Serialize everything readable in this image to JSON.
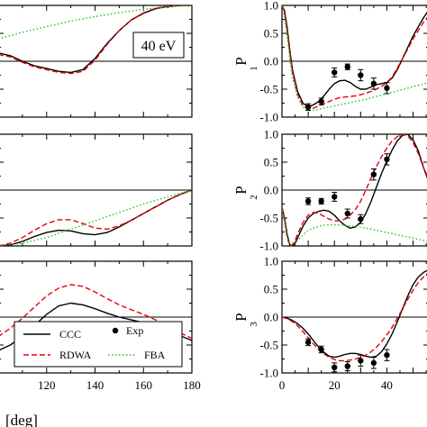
{
  "figure": {
    "energy_label": "40 eV",
    "x_axis_label": "[deg]",
    "legend": {
      "ccc": "CCC",
      "exp": "Exp",
      "rdwa": "RDWA",
      "fba": "FBA"
    }
  },
  "chart_data": [
    {
      "type": "line",
      "panel": "left-top",
      "xlim": [
        100,
        180
      ],
      "ylim": [
        -1,
        1
      ],
      "grid": false,
      "x_ticks": [],
      "series": [
        {
          "name": "CCC",
          "color": "#000000",
          "dash": "solid",
          "x": [
            100,
            105,
            110,
            115,
            120,
            125,
            130,
            135,
            140,
            145,
            150,
            155,
            160,
            165,
            170,
            175,
            180
          ],
          "y": [
            0.15,
            0.1,
            0.0,
            -0.08,
            -0.13,
            -0.18,
            -0.2,
            -0.15,
            0.05,
            0.32,
            0.55,
            0.74,
            0.86,
            0.94,
            0.98,
            1.0,
            1.0
          ]
        },
        {
          "name": "RDWA",
          "color": "#e8000b",
          "dash": "dashed",
          "x": [
            100,
            105,
            110,
            115,
            120,
            125,
            130,
            135,
            140,
            145,
            150,
            155,
            160,
            165,
            170,
            175,
            180
          ],
          "y": [
            0.12,
            0.08,
            -0.02,
            -0.1,
            -0.15,
            -0.2,
            -0.22,
            -0.18,
            0.02,
            0.3,
            0.55,
            0.74,
            0.87,
            0.95,
            0.99,
            1.0,
            1.0
          ]
        },
        {
          "name": "FBA",
          "color": "#22c022",
          "dash": "dotted",
          "x": [
            100,
            110,
            120,
            130,
            140,
            150,
            160,
            170,
            180
          ],
          "y": [
            0.4,
            0.52,
            0.62,
            0.72,
            0.8,
            0.87,
            0.93,
            0.97,
            1.0
          ]
        }
      ]
    },
    {
      "type": "line",
      "panel": "left-middle",
      "xlim": [
        100,
        180
      ],
      "ylim": [
        -1,
        1
      ],
      "grid": false,
      "x_ticks": [],
      "series": [
        {
          "name": "CCC",
          "color": "#000000",
          "dash": "solid",
          "x": [
            100,
            105,
            110,
            115,
            120,
            125,
            130,
            135,
            140,
            145,
            150,
            155,
            160,
            165,
            170,
            175,
            180
          ],
          "y": [
            -1.0,
            -0.98,
            -0.92,
            -0.83,
            -0.76,
            -0.72,
            -0.73,
            -0.78,
            -0.8,
            -0.76,
            -0.66,
            -0.54,
            -0.42,
            -0.3,
            -0.18,
            -0.08,
            0.0
          ]
        },
        {
          "name": "RDWA",
          "color": "#e8000b",
          "dash": "dashed",
          "x": [
            100,
            105,
            110,
            115,
            120,
            125,
            130,
            135,
            140,
            145,
            150,
            155,
            160,
            165,
            170,
            175,
            180
          ],
          "y": [
            -1.0,
            -0.95,
            -0.85,
            -0.72,
            -0.6,
            -0.53,
            -0.53,
            -0.6,
            -0.68,
            -0.7,
            -0.64,
            -0.54,
            -0.42,
            -0.3,
            -0.18,
            -0.08,
            0.0
          ]
        },
        {
          "name": "FBA",
          "color": "#22c022",
          "dash": "dotted",
          "x": [
            100,
            110,
            120,
            130,
            140,
            150,
            160,
            170,
            180
          ],
          "y": [
            -1.0,
            -0.95,
            -0.85,
            -0.7,
            -0.55,
            -0.4,
            -0.25,
            -0.12,
            0.0
          ]
        }
      ]
    },
    {
      "type": "line",
      "panel": "left-bottom",
      "xlim": [
        100,
        180
      ],
      "ylim": [
        -1,
        1
      ],
      "grid": false,
      "x_ticks": [
        120,
        140,
        160,
        180
      ],
      "series": [
        {
          "name": "CCC",
          "color": "#000000",
          "dash": "solid",
          "x": [
            100,
            105,
            110,
            115,
            120,
            125,
            130,
            135,
            140,
            145,
            150,
            155,
            160,
            165,
            170,
            175,
            180
          ],
          "y": [
            -0.6,
            -0.5,
            -0.35,
            -0.15,
            0.05,
            0.2,
            0.25,
            0.22,
            0.15,
            0.07,
            0.0,
            -0.05,
            -0.1,
            -0.17,
            -0.25,
            -0.33,
            -0.42
          ]
        },
        {
          "name": "RDWA",
          "color": "#e8000b",
          "dash": "dashed",
          "x": [
            100,
            105,
            110,
            115,
            120,
            125,
            130,
            135,
            140,
            145,
            150,
            155,
            160,
            165,
            170,
            175,
            180
          ],
          "y": [
            -0.35,
            -0.2,
            -0.02,
            0.18,
            0.38,
            0.52,
            0.58,
            0.55,
            0.45,
            0.33,
            0.22,
            0.13,
            0.05,
            -0.05,
            -0.17,
            -0.28,
            -0.38
          ]
        }
      ]
    },
    {
      "type": "line",
      "panel": "P1",
      "ylabel": "P",
      "ylabel_sub": "1",
      "xlim": [
        0,
        56
      ],
      "ylim": [
        -1,
        1
      ],
      "y_ticks": [
        1.0,
        0.5,
        0.0,
        -0.5,
        -1.0
      ],
      "x_ticks": [],
      "grid": false,
      "series": [
        {
          "name": "CCC",
          "color": "#000000",
          "dash": "solid",
          "x": [
            0,
            1,
            2,
            3,
            4,
            6,
            8,
            10,
            12,
            14,
            16,
            18,
            20,
            22,
            24,
            26,
            28,
            30,
            32,
            34,
            36,
            38,
            40,
            42,
            44,
            46,
            48,
            50,
            52,
            54,
            56
          ],
          "y": [
            1.0,
            0.9,
            0.6,
            0.2,
            -0.15,
            -0.55,
            -0.75,
            -0.82,
            -0.78,
            -0.72,
            -0.62,
            -0.5,
            -0.4,
            -0.35,
            -0.34,
            -0.38,
            -0.45,
            -0.5,
            -0.5,
            -0.46,
            -0.42,
            -0.4,
            -0.38,
            -0.3,
            -0.15,
            0.05,
            0.25,
            0.45,
            0.62,
            0.78,
            0.92
          ]
        },
        {
          "name": "RDWA",
          "color": "#e8000b",
          "dash": "dashed",
          "x": [
            0,
            1,
            2,
            3,
            4,
            6,
            8,
            10,
            12,
            14,
            16,
            18,
            20,
            22,
            24,
            26,
            28,
            30,
            32,
            34,
            36,
            38,
            40,
            42,
            44,
            46,
            48,
            50,
            52,
            54,
            56
          ],
          "y": [
            1.0,
            0.85,
            0.55,
            0.15,
            -0.2,
            -0.6,
            -0.8,
            -0.85,
            -0.84,
            -0.8,
            -0.76,
            -0.72,
            -0.68,
            -0.65,
            -0.64,
            -0.63,
            -0.62,
            -0.6,
            -0.57,
            -0.54,
            -0.5,
            -0.45,
            -0.38,
            -0.28,
            -0.12,
            0.05,
            0.22,
            0.4,
            0.55,
            0.7,
            0.82
          ]
        },
        {
          "name": "FBA",
          "color": "#22c022",
          "dash": "dotted",
          "x": [
            0,
            1,
            2,
            3,
            4,
            6,
            8,
            10,
            12,
            14,
            16,
            18,
            20,
            24,
            28,
            32,
            36,
            40,
            44,
            48,
            52,
            56
          ],
          "y": [
            1.0,
            0.8,
            0.45,
            0.05,
            -0.3,
            -0.65,
            -0.82,
            -0.88,
            -0.88,
            -0.86,
            -0.84,
            -0.82,
            -0.8,
            -0.76,
            -0.72,
            -0.68,
            -0.63,
            -0.58,
            -0.53,
            -0.48,
            -0.43,
            -0.38
          ]
        },
        {
          "name": "Exp",
          "type": "scatter",
          "color": "#000000",
          "x": [
            10,
            15,
            20,
            25,
            30,
            35,
            40
          ],
          "y": [
            -0.82,
            -0.72,
            -0.2,
            -0.1,
            -0.25,
            -0.4,
            -0.48
          ],
          "yerr": [
            0.06,
            0.06,
            0.08,
            0.05,
            0.1,
            0.1,
            0.1
          ]
        }
      ]
    },
    {
      "type": "line",
      "panel": "P2",
      "ylabel": "P",
      "ylabel_sub": "2",
      "xlim": [
        0,
        56
      ],
      "ylim": [
        -1,
        1
      ],
      "y_ticks": [
        1.0,
        0.5,
        0.0,
        -0.5,
        -1.0
      ],
      "x_ticks": [],
      "grid": false,
      "series": [
        {
          "name": "CCC",
          "color": "#000000",
          "dash": "solid",
          "x": [
            0,
            1,
            2,
            3,
            4,
            5,
            6,
            8,
            10,
            12,
            14,
            16,
            18,
            20,
            22,
            24,
            26,
            28,
            30,
            32,
            34,
            36,
            38,
            40,
            42,
            44,
            46,
            48,
            50,
            52,
            54,
            56
          ],
          "y": [
            -0.3,
            -0.5,
            -0.8,
            -0.98,
            -1.0,
            -0.95,
            -0.85,
            -0.65,
            -0.5,
            -0.42,
            -0.38,
            -0.36,
            -0.38,
            -0.45,
            -0.55,
            -0.63,
            -0.68,
            -0.66,
            -0.58,
            -0.42,
            -0.2,
            0.05,
            0.3,
            0.52,
            0.72,
            0.88,
            0.98,
            1.0,
            0.9,
            0.7,
            0.4,
            0.15
          ]
        },
        {
          "name": "RDWA",
          "color": "#e8000b",
          "dash": "dashed",
          "x": [
            0,
            1,
            2,
            3,
            4,
            5,
            6,
            8,
            10,
            12,
            14,
            16,
            18,
            20,
            22,
            24,
            26,
            28,
            30,
            32,
            34,
            36,
            38,
            40,
            42,
            44,
            46,
            48,
            50,
            52,
            54,
            56
          ],
          "y": [
            -0.3,
            -0.55,
            -0.85,
            -1.0,
            -0.98,
            -0.9,
            -0.78,
            -0.58,
            -0.45,
            -0.4,
            -0.42,
            -0.47,
            -0.52,
            -0.55,
            -0.55,
            -0.52,
            -0.45,
            -0.35,
            -0.2,
            0.0,
            0.22,
            0.42,
            0.6,
            0.75,
            0.88,
            0.96,
            1.0,
            0.97,
            0.85,
            0.65,
            0.4,
            0.2
          ]
        },
        {
          "name": "FBA",
          "color": "#22c022",
          "dash": "dotted",
          "x": [
            0,
            1,
            2,
            3,
            4,
            6,
            8,
            10,
            12,
            14,
            16,
            18,
            20,
            24,
            28,
            32,
            36,
            40,
            44,
            48,
            52,
            56
          ],
          "y": [
            -0.3,
            -0.55,
            -0.85,
            -0.98,
            -0.98,
            -0.9,
            -0.8,
            -0.72,
            -0.68,
            -0.65,
            -0.63,
            -0.62,
            -0.62,
            -0.63,
            -0.65,
            -0.68,
            -0.72,
            -0.76,
            -0.8,
            -0.84,
            -0.88,
            -0.92
          ]
        },
        {
          "name": "Exp",
          "type": "scatter",
          "color": "#000000",
          "x": [
            10,
            15,
            20,
            25,
            30,
            35,
            40
          ],
          "y": [
            -0.2,
            -0.2,
            -0.12,
            -0.42,
            -0.52,
            0.28,
            0.55
          ],
          "yerr": [
            0.06,
            0.05,
            0.08,
            0.08,
            0.08,
            0.1,
            0.1
          ]
        }
      ]
    },
    {
      "type": "line",
      "panel": "P3",
      "ylabel": "P",
      "ylabel_sub": "3",
      "xlim": [
        0,
        56
      ],
      "ylim": [
        -1,
        1
      ],
      "y_ticks": [
        1.0,
        0.5,
        0.0,
        -0.5,
        -1.0
      ],
      "x_ticks": [
        0,
        20,
        40
      ],
      "grid": false,
      "series": [
        {
          "name": "CCC",
          "color": "#000000",
          "dash": "solid",
          "x": [
            0,
            2,
            4,
            6,
            8,
            10,
            12,
            14,
            16,
            18,
            20,
            22,
            24,
            26,
            28,
            30,
            32,
            34,
            36,
            38,
            40,
            42,
            44,
            46,
            48,
            50,
            52,
            54,
            56
          ],
          "y": [
            0.0,
            -0.02,
            -0.06,
            -0.12,
            -0.2,
            -0.3,
            -0.42,
            -0.54,
            -0.63,
            -0.7,
            -0.72,
            -0.7,
            -0.67,
            -0.65,
            -0.65,
            -0.67,
            -0.7,
            -0.72,
            -0.7,
            -0.62,
            -0.48,
            -0.3,
            -0.08,
            0.15,
            0.38,
            0.58,
            0.72,
            0.8,
            0.85
          ]
        },
        {
          "name": "RDWA",
          "color": "#e8000b",
          "dash": "dashed",
          "x": [
            0,
            2,
            4,
            6,
            8,
            10,
            12,
            14,
            16,
            18,
            20,
            22,
            24,
            26,
            28,
            30,
            32,
            34,
            36,
            38,
            40,
            42,
            44,
            46,
            48,
            50,
            52,
            54,
            56
          ],
          "y": [
            0.0,
            -0.03,
            -0.08,
            -0.16,
            -0.26,
            -0.37,
            -0.48,
            -0.58,
            -0.66,
            -0.72,
            -0.76,
            -0.78,
            -0.78,
            -0.77,
            -0.75,
            -0.72,
            -0.68,
            -0.62,
            -0.54,
            -0.44,
            -0.32,
            -0.18,
            -0.02,
            0.15,
            0.32,
            0.48,
            0.62,
            0.72,
            0.8
          ]
        },
        {
          "name": "Exp",
          "type": "scatter",
          "color": "#000000",
          "x": [
            10,
            15,
            20,
            25,
            30,
            35,
            40
          ],
          "y": [
            -0.45,
            -0.58,
            -0.9,
            -0.88,
            -0.78,
            -0.82,
            -0.68
          ],
          "yerr": [
            0.06,
            0.06,
            0.08,
            0.08,
            0.1,
            0.1,
            0.1
          ]
        }
      ]
    }
  ]
}
